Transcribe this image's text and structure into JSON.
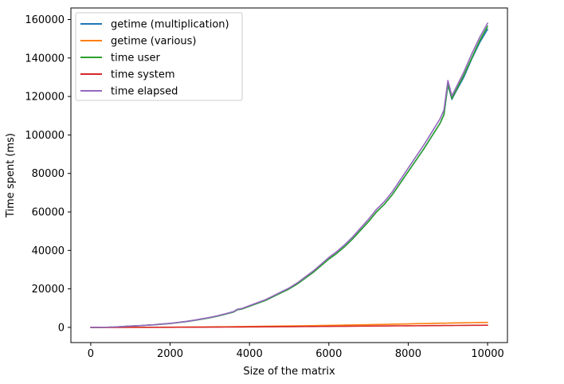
{
  "chart_data": {
    "type": "line",
    "title": "",
    "xlabel": "Size of the matrix",
    "ylabel": "Time spent (ms)",
    "xlim": [
      -500,
      10500
    ],
    "ylim": [
      -7900,
      166000
    ],
    "xticks": [
      0,
      2000,
      4000,
      6000,
      8000,
      10000
    ],
    "yticks": [
      0,
      20000,
      40000,
      60000,
      80000,
      100000,
      120000,
      140000,
      160000
    ],
    "grid": false,
    "legend_position": "top-left",
    "x": [
      0,
      200,
      400,
      600,
      800,
      1000,
      1200,
      1400,
      1600,
      1800,
      2000,
      2200,
      2400,
      2600,
      2800,
      3000,
      3200,
      3400,
      3600,
      3700,
      3800,
      4000,
      4200,
      4400,
      4600,
      4800,
      5000,
      5200,
      5400,
      5600,
      5800,
      6000,
      6200,
      6400,
      6600,
      6800,
      7000,
      7200,
      7400,
      7600,
      7800,
      8000,
      8200,
      8400,
      8600,
      8800,
      8900,
      9000,
      9100,
      9200,
      9400,
      9600,
      9800,
      10000
    ],
    "series": [
      {
        "name": "getime (multiplication)",
        "color": "#1f77b4",
        "values": [
          0,
          10,
          60,
          180,
          400,
          650,
          850,
          1100,
          1350,
          1700,
          2000,
          2500,
          3000,
          3600,
          4300,
          5000,
          5900,
          6900,
          8000,
          9200,
          9500,
          11000,
          12500,
          14000,
          16000,
          18000,
          20000,
          22500,
          25500,
          28500,
          32000,
          35500,
          38500,
          42000,
          46000,
          50500,
          55000,
          60000,
          64000,
          69000,
          75000,
          81000,
          87000,
          93000,
          99500,
          106000,
          110500,
          126000,
          118500,
          122500,
          130000,
          139500,
          148000,
          155000
        ]
      },
      {
        "name": "getime (various)",
        "color": "#ff7f0e",
        "values": [
          0,
          2,
          5,
          10,
          18,
          28,
          40,
          54,
          70,
          90,
          110,
          135,
          160,
          190,
          220,
          255,
          290,
          330,
          370,
          390,
          410,
          455,
          500,
          550,
          600,
          655,
          710,
          770,
          830,
          895,
          960,
          1030,
          1100,
          1170,
          1250,
          1320,
          1400,
          1480,
          1560,
          1640,
          1720,
          1810,
          1890,
          1980,
          2060,
          2150,
          2180,
          2250,
          2280,
          2310,
          2380,
          2450,
          2520,
          2600
        ]
      },
      {
        "name": "time user",
        "color": "#2ca02c",
        "values": [
          0,
          10,
          60,
          180,
          400,
          650,
          850,
          1100,
          1350,
          1700,
          2000,
          2500,
          3000,
          3600,
          4300,
          5000,
          5900,
          6900,
          8000,
          9200,
          9500,
          11000,
          12500,
          14000,
          16000,
          18000,
          20000,
          22500,
          25500,
          28500,
          32000,
          35500,
          38500,
          42000,
          46000,
          50500,
          55000,
          60000,
          64000,
          69000,
          75000,
          81000,
          87000,
          93000,
          99500,
          106000,
          110500,
          126500,
          119000,
          123000,
          131000,
          140000,
          149000,
          156500
        ]
      },
      {
        "name": "time system",
        "color": "#d62728",
        "values": [
          0,
          1,
          3,
          6,
          10,
          15,
          22,
          30,
          40,
          50,
          60,
          72,
          85,
          100,
          115,
          130,
          150,
          170,
          190,
          200,
          210,
          235,
          260,
          285,
          310,
          340,
          370,
          400,
          430,
          460,
          490,
          520,
          550,
          580,
          610,
          640,
          670,
          700,
          730,
          760,
          790,
          820,
          850,
          880,
          910,
          940,
          955,
          970,
          985,
          1000,
          1030,
          1060,
          1090,
          1120
        ]
      },
      {
        "name": "time elapsed",
        "color": "#9467bd",
        "values": [
          0,
          12,
          65,
          190,
          420,
          680,
          890,
          1150,
          1400,
          1760,
          2060,
          2580,
          3100,
          3720,
          4440,
          5160,
          6080,
          7100,
          8220,
          9440,
          9760,
          11300,
          12830,
          14370,
          16410,
          18460,
          20500,
          23060,
          26130,
          29190,
          32760,
          36330,
          39400,
          42970,
          47040,
          51640,
          56230,
          61340,
          65400,
          70520,
          76650,
          82780,
          88900,
          95030,
          101650,
          108300,
          112900,
          128300,
          120300,
          124400,
          132600,
          142100,
          150700,
          158100
        ]
      }
    ]
  }
}
